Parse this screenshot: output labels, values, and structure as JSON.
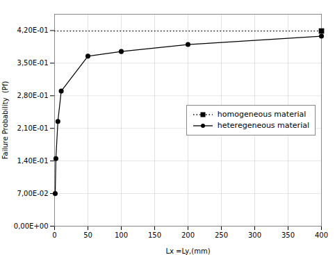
{
  "chart_data": {
    "type": "line",
    "xlabel": "Lx =Ly,(mm)",
    "ylabel": "Failure Probability  (Pf)",
    "xlim": [
      0,
      400
    ],
    "ylim": [
      0.0,
      0.455
    ],
    "xticks": [
      0,
      50,
      100,
      150,
      200,
      250,
      300,
      350,
      400
    ],
    "yticks": [
      {
        "value": 0.0,
        "label": "0,00E+00"
      },
      {
        "value": 0.07,
        "label": "7,00E-02"
      },
      {
        "value": 0.14,
        "label": "1,40E-01"
      },
      {
        "value": 0.21,
        "label": "2,10E-01"
      },
      {
        "value": 0.28,
        "label": "2,80E-01"
      },
      {
        "value": 0.35,
        "label": "3,50E-01"
      },
      {
        "value": 0.42,
        "label": "4,20E-01"
      }
    ],
    "grid": true,
    "legend": "right",
    "series": [
      {
        "name": "homogeneous material",
        "type": "hline",
        "x": [
          400
        ],
        "values": [
          0.419
        ],
        "color": "#000000",
        "line_style": "dotted",
        "marker": "square"
      },
      {
        "name": "heteregeneous material",
        "type": "line",
        "x": [
          1,
          2,
          5,
          10,
          50,
          100,
          200,
          400
        ],
        "values": [
          0.07,
          0.145,
          0.225,
          0.29,
          0.365,
          0.375,
          0.39,
          0.408
        ],
        "color": "#000000",
        "line_style": "solid",
        "marker": "circle"
      }
    ]
  }
}
